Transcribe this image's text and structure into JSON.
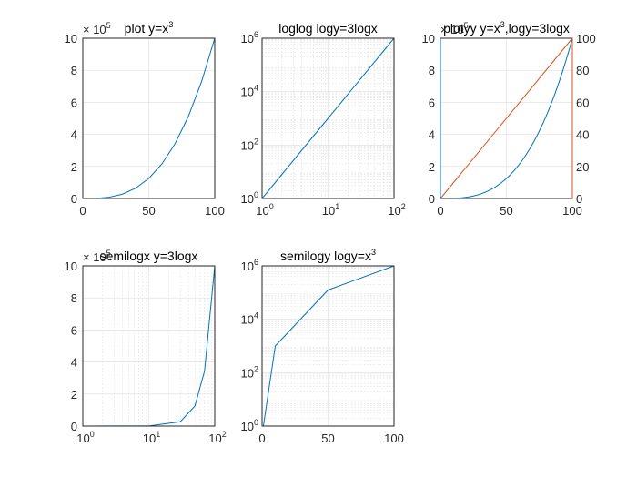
{
  "figure": {
    "colors": {
      "blue": "#0072BD",
      "orange": "#D95319",
      "axis": "#262626",
      "grid": "#dedede"
    }
  },
  "chart_data": [
    {
      "id": "p1",
      "type": "line",
      "title": "plot y=x",
      "title_sup": "3",
      "xscale": "linear",
      "yscale": "linear",
      "xlim": [
        0,
        100
      ],
      "ylim": [
        0,
        1000000
      ],
      "xticks": [
        "0",
        "50",
        "100"
      ],
      "yticks": [
        "0",
        "2",
        "4",
        "6",
        "8",
        "10"
      ],
      "y_exponent": {
        "base": "× 10",
        "power": "5"
      },
      "grid": true,
      "function": "y = x^3",
      "series": [
        {
          "color": "#0072BD",
          "x": [
            0,
            10,
            20,
            30,
            40,
            50,
            60,
            70,
            80,
            90,
            100
          ],
          "y": [
            0,
            1000,
            8000,
            27000,
            64000,
            125000,
            216000,
            343000,
            512000,
            729000,
            1000000
          ]
        }
      ]
    },
    {
      "id": "p2",
      "type": "line",
      "title": "loglog logy=3logx",
      "xscale": "log",
      "yscale": "log",
      "xlim": [
        1,
        100
      ],
      "ylim": [
        1,
        1000000
      ],
      "xtick_labels": [
        {
          "base": "10",
          "power": "0"
        },
        {
          "base": "10",
          "power": "1"
        },
        {
          "base": "10",
          "power": "2"
        }
      ],
      "ytick_labels": [
        {
          "base": "10",
          "power": "0"
        },
        {
          "base": "10",
          "power": "2"
        },
        {
          "base": "10",
          "power": "4"
        },
        {
          "base": "10",
          "power": "6"
        }
      ],
      "grid": true,
      "minor_grid": true,
      "function": "y = x^3",
      "series": [
        {
          "color": "#0072BD",
          "x": [
            1,
            10,
            100
          ],
          "y": [
            1,
            1000,
            1000000
          ]
        }
      ]
    },
    {
      "id": "p3",
      "type": "line",
      "title": "plotyy y=x",
      "title_sup": "3",
      "title_rest": ",logy=3logx",
      "xscale": "linear",
      "xlim": [
        0,
        100
      ],
      "ylim_left": [
        0,
        1000000
      ],
      "ylim_right": [
        0,
        100
      ],
      "xticks": [
        "0",
        "50",
        "100"
      ],
      "yticks_left": [
        "0",
        "2",
        "4",
        "6",
        "8",
        "10"
      ],
      "yticks_right": [
        "0",
        "20",
        "40",
        "60",
        "80",
        "100"
      ],
      "y_exponent": {
        "base": "× 10",
        "power": "5"
      },
      "grid": true,
      "series": [
        {
          "axis": "left",
          "color": "#0072BD",
          "function": "y = x^3",
          "x": [
            0,
            25,
            50,
            75,
            100
          ],
          "y": [
            0,
            15625,
            125000,
            421875,
            1000000
          ]
        },
        {
          "axis": "right",
          "color": "#D95319",
          "function": "3 log x (shown as y = x)",
          "x": [
            0,
            100
          ],
          "y": [
            0,
            100
          ]
        }
      ]
    },
    {
      "id": "p4",
      "type": "line",
      "title": "semilogx y=3logx",
      "xscale": "log",
      "yscale": "linear",
      "xlim": [
        1,
        100
      ],
      "ylim": [
        0,
        1000000
      ],
      "xtick_labels": [
        {
          "base": "10",
          "power": "0"
        },
        {
          "base": "10",
          "power": "1"
        },
        {
          "base": "10",
          "power": "2"
        }
      ],
      "yticks": [
        "0",
        "2",
        "4",
        "6",
        "8",
        "10"
      ],
      "y_exponent": {
        "base": "× 10",
        "power": "5"
      },
      "grid": true,
      "minor_grid": true,
      "function": "y = x^3",
      "series": [
        {
          "color": "#0072BD",
          "x": [
            1,
            10,
            30,
            50,
            70,
            100
          ],
          "y": [
            1,
            1000,
            27000,
            125000,
            343000,
            1000000
          ]
        }
      ]
    },
    {
      "id": "p5",
      "type": "line",
      "title": "semilogy logy=x",
      "title_sup": "3",
      "xscale": "linear",
      "yscale": "log",
      "xlim": [
        0,
        100
      ],
      "ylim": [
        1,
        1000000
      ],
      "xticks": [
        "0",
        "50",
        "100"
      ],
      "ytick_labels": [
        {
          "base": "10",
          "power": "0"
        },
        {
          "base": "10",
          "power": "2"
        },
        {
          "base": "10",
          "power": "4"
        },
        {
          "base": "10",
          "power": "6"
        }
      ],
      "grid": true,
      "minor_grid": true,
      "function": "y = x^3",
      "series": [
        {
          "color": "#0072BD",
          "x": [
            1,
            10,
            50,
            100
          ],
          "y": [
            1,
            1000,
            125000,
            1000000
          ]
        }
      ]
    }
  ]
}
